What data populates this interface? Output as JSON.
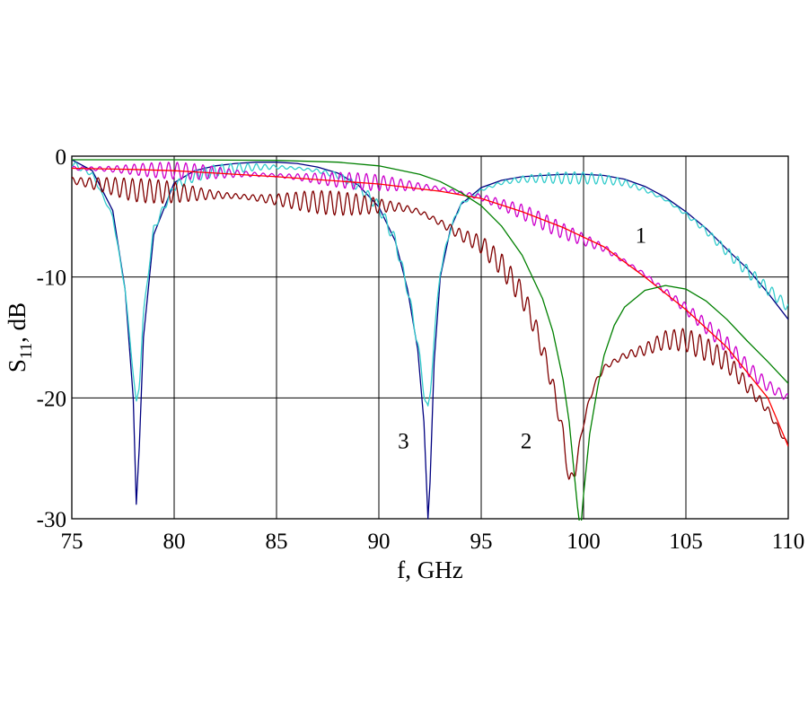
{
  "chart_data": {
    "type": "line",
    "title": "",
    "xlabel": "f, GHz",
    "ylabel_main": "S",
    "ylabel_sub": "11",
    "ylabel_unit": ", dB",
    "xlim": [
      75,
      110
    ],
    "ylim": [
      -30,
      0
    ],
    "xticks": [
      75,
      80,
      85,
      90,
      95,
      100,
      105,
      110
    ],
    "yticks": [
      0,
      -10,
      -20,
      -30
    ],
    "grid": true,
    "legend": "none",
    "annotations": [
      {
        "text": "1",
        "x": 102.8,
        "y": -6.5
      },
      {
        "text": "2",
        "x": 97.2,
        "y": -23.5
      },
      {
        "text": "3",
        "x": 91.2,
        "y": -23.5
      }
    ],
    "series": [
      {
        "color": "#000080",
        "style": "smooth",
        "ripple": 0,
        "x": [
          75,
          76,
          77,
          77.6,
          78,
          78.15,
          78.3,
          78.5,
          79,
          80,
          81,
          82,
          83,
          84,
          85,
          86,
          87,
          88,
          89,
          90,
          90.8,
          91.4,
          91.9,
          92.2,
          92.4,
          92.5,
          92.7,
          93,
          93.5,
          94,
          95,
          96,
          97,
          98,
          99,
          100,
          101,
          102,
          103,
          104,
          105,
          106,
          107,
          108,
          109,
          110
        ],
        "y": [
          -0.3,
          -1.2,
          -4.5,
          -11,
          -20,
          -28.8,
          -24,
          -15,
          -6.5,
          -2.2,
          -1.2,
          -0.8,
          -0.6,
          -0.5,
          -0.5,
          -0.6,
          -0.9,
          -1.4,
          -2.4,
          -4.2,
          -7,
          -11,
          -16,
          -22,
          -30,
          -27,
          -17,
          -10,
          -6,
          -4,
          -2.6,
          -2,
          -1.7,
          -1.6,
          -1.5,
          -1.5,
          -1.6,
          -1.9,
          -2.5,
          -3.4,
          -4.6,
          -6,
          -7.7,
          -9.3,
          -11.3,
          -13.5
        ]
      },
      {
        "color": "#33cccc",
        "style": "ripple",
        "ripple": 0.5,
        "x": [
          75,
          76,
          77,
          77.6,
          78,
          78.15,
          78.3,
          78.5,
          79,
          80,
          81,
          82,
          83,
          84,
          85,
          86,
          87,
          88,
          89,
          90,
          90.8,
          91.4,
          91.9,
          92.2,
          92.4,
          92.5,
          92.7,
          93,
          93.5,
          94,
          95,
          96,
          97,
          98,
          99,
          100,
          101,
          102,
          103,
          104,
          105,
          106,
          107,
          108,
          109,
          110
        ],
        "y": [
          -0.6,
          -1.5,
          -5,
          -11,
          -18,
          -20.5,
          -19,
          -13,
          -6,
          -2.5,
          -1.6,
          -1.2,
          -1,
          -0.9,
          -0.9,
          -1,
          -1.2,
          -1.6,
          -2.5,
          -4.2,
          -7,
          -11,
          -15.5,
          -19.5,
          -21,
          -20,
          -15,
          -9.5,
          -6,
          -4,
          -2.8,
          -2.2,
          -1.9,
          -1.8,
          -1.8,
          -1.8,
          -1.9,
          -2.2,
          -2.8,
          -3.6,
          -4.8,
          -6.2,
          -7.9,
          -9.5,
          -11,
          -12.5
        ]
      },
      {
        "color": "#cc00cc",
        "style": "ripple",
        "ripple": 0.7,
        "x": [
          75,
          78,
          80,
          85,
          90,
          93,
          95,
          97,
          99,
          101,
          103,
          105,
          107,
          108,
          109,
          110
        ],
        "y": [
          -1,
          -1.1,
          -1.2,
          -1.6,
          -2.2,
          -2.7,
          -3.4,
          -4.6,
          -6.2,
          -7.6,
          -9.8,
          -12.6,
          -15.6,
          -17.5,
          -19,
          -20
        ]
      },
      {
        "color": "#800000",
        "style": "ripple",
        "ripple": 1.0,
        "x": [
          75,
          77,
          78,
          80,
          83,
          85,
          88,
          90,
          91,
          92,
          93,
          94,
          95,
          96,
          97,
          97.5,
          98,
          98.5,
          99,
          99.3,
          99.6,
          100,
          100.5,
          101,
          102,
          103,
          104,
          105,
          106,
          107,
          108,
          109,
          110
        ],
        "y": [
          -2,
          -2.5,
          -2.8,
          -3,
          -3.3,
          -3.6,
          -3.9,
          -4.1,
          -4.2,
          -4.6,
          -5.5,
          -6.5,
          -7.3,
          -9,
          -11.5,
          -13.5,
          -16,
          -19,
          -23,
          -27,
          -26,
          -22,
          -19,
          -17.5,
          -16.5,
          -16,
          -15.2,
          -15.2,
          -16,
          -17,
          -19,
          -21,
          -24
        ]
      },
      {
        "color": "#ff0000",
        "style": "smooth",
        "ripple": 0,
        "x": [
          75,
          78,
          80,
          85,
          90,
          93,
          95,
          97,
          99,
          101,
          103,
          105,
          107,
          109,
          110
        ],
        "y": [
          -1,
          -1.1,
          -1.2,
          -1.7,
          -2.3,
          -2.9,
          -3.5,
          -4.6,
          -5.9,
          -7.5,
          -10,
          -12.7,
          -15.8,
          -20,
          -24
        ]
      },
      {
        "color": "#008000",
        "style": "smooth",
        "ripple": 0,
        "x": [
          75,
          80,
          85,
          88,
          90,
          92,
          93,
          94,
          95,
          96,
          97,
          98,
          98.5,
          99,
          99.3,
          99.5,
          99.7,
          99.85,
          100,
          100.3,
          100.7,
          101,
          101.5,
          102,
          103,
          104,
          105,
          106,
          107,
          108,
          109,
          110
        ],
        "y": [
          -0.3,
          -0.3,
          -0.35,
          -0.5,
          -0.8,
          -1.5,
          -2.1,
          -3,
          -4.1,
          -5.8,
          -8.2,
          -11.8,
          -14.5,
          -18.5,
          -22,
          -25.5,
          -29,
          -31,
          -28,
          -23,
          -19,
          -16.5,
          -14,
          -12.5,
          -11.1,
          -10.7,
          -11,
          -12,
          -13.5,
          -15.3,
          -17,
          -18.8
        ]
      }
    ]
  }
}
